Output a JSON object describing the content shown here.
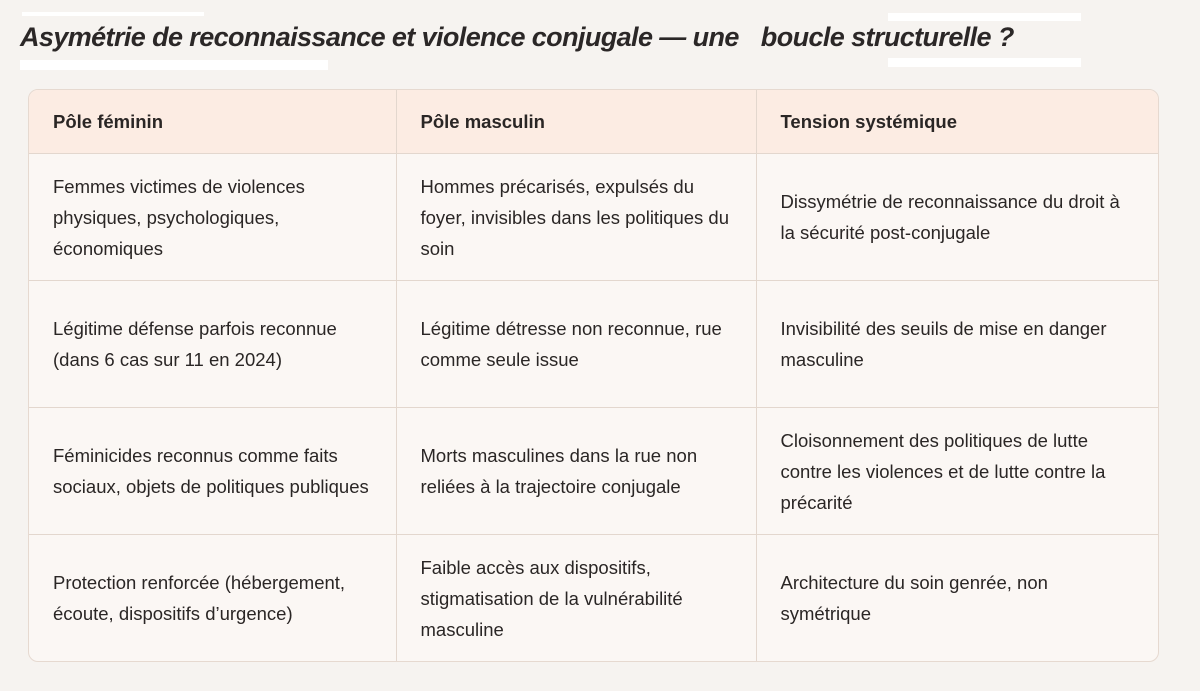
{
  "title": {
    "part1": "Asymétrie de reconnaissance et violence conjugale — une",
    "part2": "boucle structurelle ?"
  },
  "table": {
    "headers": [
      "Pôle féminin",
      "Pôle masculin",
      "Tension systémique"
    ],
    "rows": [
      [
        "Femmes victimes de violences physiques, psychologiques, économiques",
        "Hommes précarisés, expulsés du foyer, invisibles dans les politiques du soin",
        "Dissymétrie de reconnaissance du droit à la sécurité post-conjugale"
      ],
      [
        "Légitime défense parfois reconnue (dans 6 cas sur 11 en 2024)",
        "Légitime détresse non reconnue, rue comme seule issue",
        "Invisibilité des seuils de mise en danger masculine"
      ],
      [
        "Féminicides reconnus comme faits sociaux, objets de politiques publiques",
        "Morts masculines dans la rue non reliées à la trajectoire conjugale",
        "Cloisonnement des politiques de lutte contre les violences et de lutte contre la précarité"
      ],
      [
        "Protection renforcée (hébergement, écoute, dispositifs d’urgence)",
        "Faible accès aux dispositifs, stigmatisation de la vulnérabilité masculine",
        "Architecture du soin genrée, non symétrique"
      ]
    ]
  }
}
